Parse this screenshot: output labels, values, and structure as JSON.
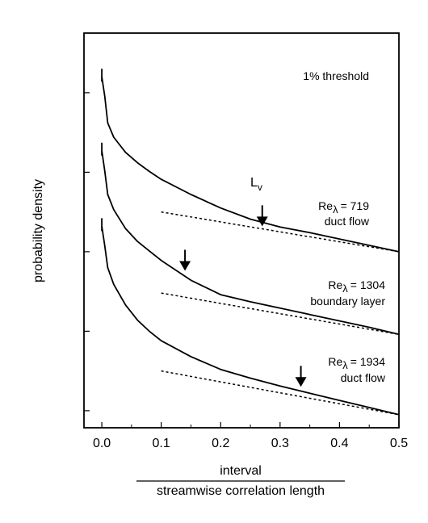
{
  "chart_data": {
    "type": "line",
    "annotation_threshold": "1% threshold",
    "ylabel": "probability density",
    "xlabel_numerator": "interval",
    "xlabel_denominator": "streamwise correlation length",
    "xlim": [
      -0.03,
      0.5
    ],
    "x_ticks": [
      "0.0",
      "0.1",
      "0.2",
      "0.3",
      "0.4",
      "0.5"
    ],
    "y_scale": "log",
    "grid": false,
    "legend": "none",
    "series": [
      {
        "label_re": "Re",
        "label_sub": "λ",
        "label_value": "= 719",
        "label_type": "duct flow",
        "marker": {
          "text": "L",
          "sub": "v",
          "x": 0.27
        },
        "fit_x": [
          0.1,
          0.5
        ],
        "points": [
          [
            0.0,
            1.2
          ],
          [
            0.005,
            0.95
          ],
          [
            0.01,
            0.62
          ],
          [
            0.02,
            0.44
          ],
          [
            0.04,
            0.25
          ],
          [
            0.06,
            0.12
          ],
          [
            0.08,
            0.01
          ],
          [
            0.1,
            -0.09
          ],
          [
            0.15,
            -0.28
          ],
          [
            0.2,
            -0.45
          ],
          [
            0.25,
            -0.59
          ],
          [
            0.3,
            -0.69
          ],
          [
            0.35,
            -0.76
          ],
          [
            0.4,
            -0.84
          ],
          [
            0.45,
            -0.92
          ],
          [
            0.5,
            -1.0
          ]
        ],
        "fit_points": [
          [
            0.1,
            -0.5
          ],
          [
            0.5,
            -1.0
          ]
        ]
      },
      {
        "label_re": "Re",
        "label_sub": "λ",
        "label_value": "= 1304",
        "label_type": "boundary layer",
        "marker": {
          "text": "",
          "sub": "",
          "x": 0.14
        },
        "fit_x": [
          0.1,
          0.5
        ],
        "points": [
          [
            0.0,
            0.27
          ],
          [
            0.005,
            0.01
          ],
          [
            0.01,
            -0.28
          ],
          [
            0.02,
            -0.47
          ],
          [
            0.04,
            -0.71
          ],
          [
            0.06,
            -0.87
          ],
          [
            0.08,
            -0.99
          ],
          [
            0.1,
            -1.11
          ],
          [
            0.15,
            -1.36
          ],
          [
            0.2,
            -1.54
          ],
          [
            0.25,
            -1.63
          ],
          [
            0.3,
            -1.71
          ],
          [
            0.35,
            -1.79
          ],
          [
            0.4,
            -1.87
          ],
          [
            0.45,
            -1.95
          ],
          [
            0.5,
            -2.04
          ]
        ],
        "fit_points": [
          [
            0.1,
            -1.52
          ],
          [
            0.5,
            -2.04
          ]
        ]
      },
      {
        "label_re": "Re",
        "label_sub": "λ",
        "label_value": "= 1934",
        "label_type": "duct flow",
        "marker": {
          "text": "",
          "sub": "",
          "x": 0.335
        },
        "fit_x": [
          0.1,
          0.5
        ],
        "points": [
          [
            0.0,
            -0.68
          ],
          [
            0.005,
            -0.93
          ],
          [
            0.01,
            -1.2
          ],
          [
            0.02,
            -1.41
          ],
          [
            0.04,
            -1.67
          ],
          [
            0.06,
            -1.86
          ],
          [
            0.08,
            -2.0
          ],
          [
            0.1,
            -2.12
          ],
          [
            0.15,
            -2.32
          ],
          [
            0.2,
            -2.48
          ],
          [
            0.25,
            -2.59
          ],
          [
            0.3,
            -2.69
          ],
          [
            0.35,
            -2.78
          ],
          [
            0.4,
            -2.87
          ],
          [
            0.45,
            -2.96
          ],
          [
            0.5,
            -3.05
          ]
        ],
        "fit_points": [
          [
            0.1,
            -2.5
          ],
          [
            0.5,
            -3.05
          ]
        ]
      }
    ]
  }
}
